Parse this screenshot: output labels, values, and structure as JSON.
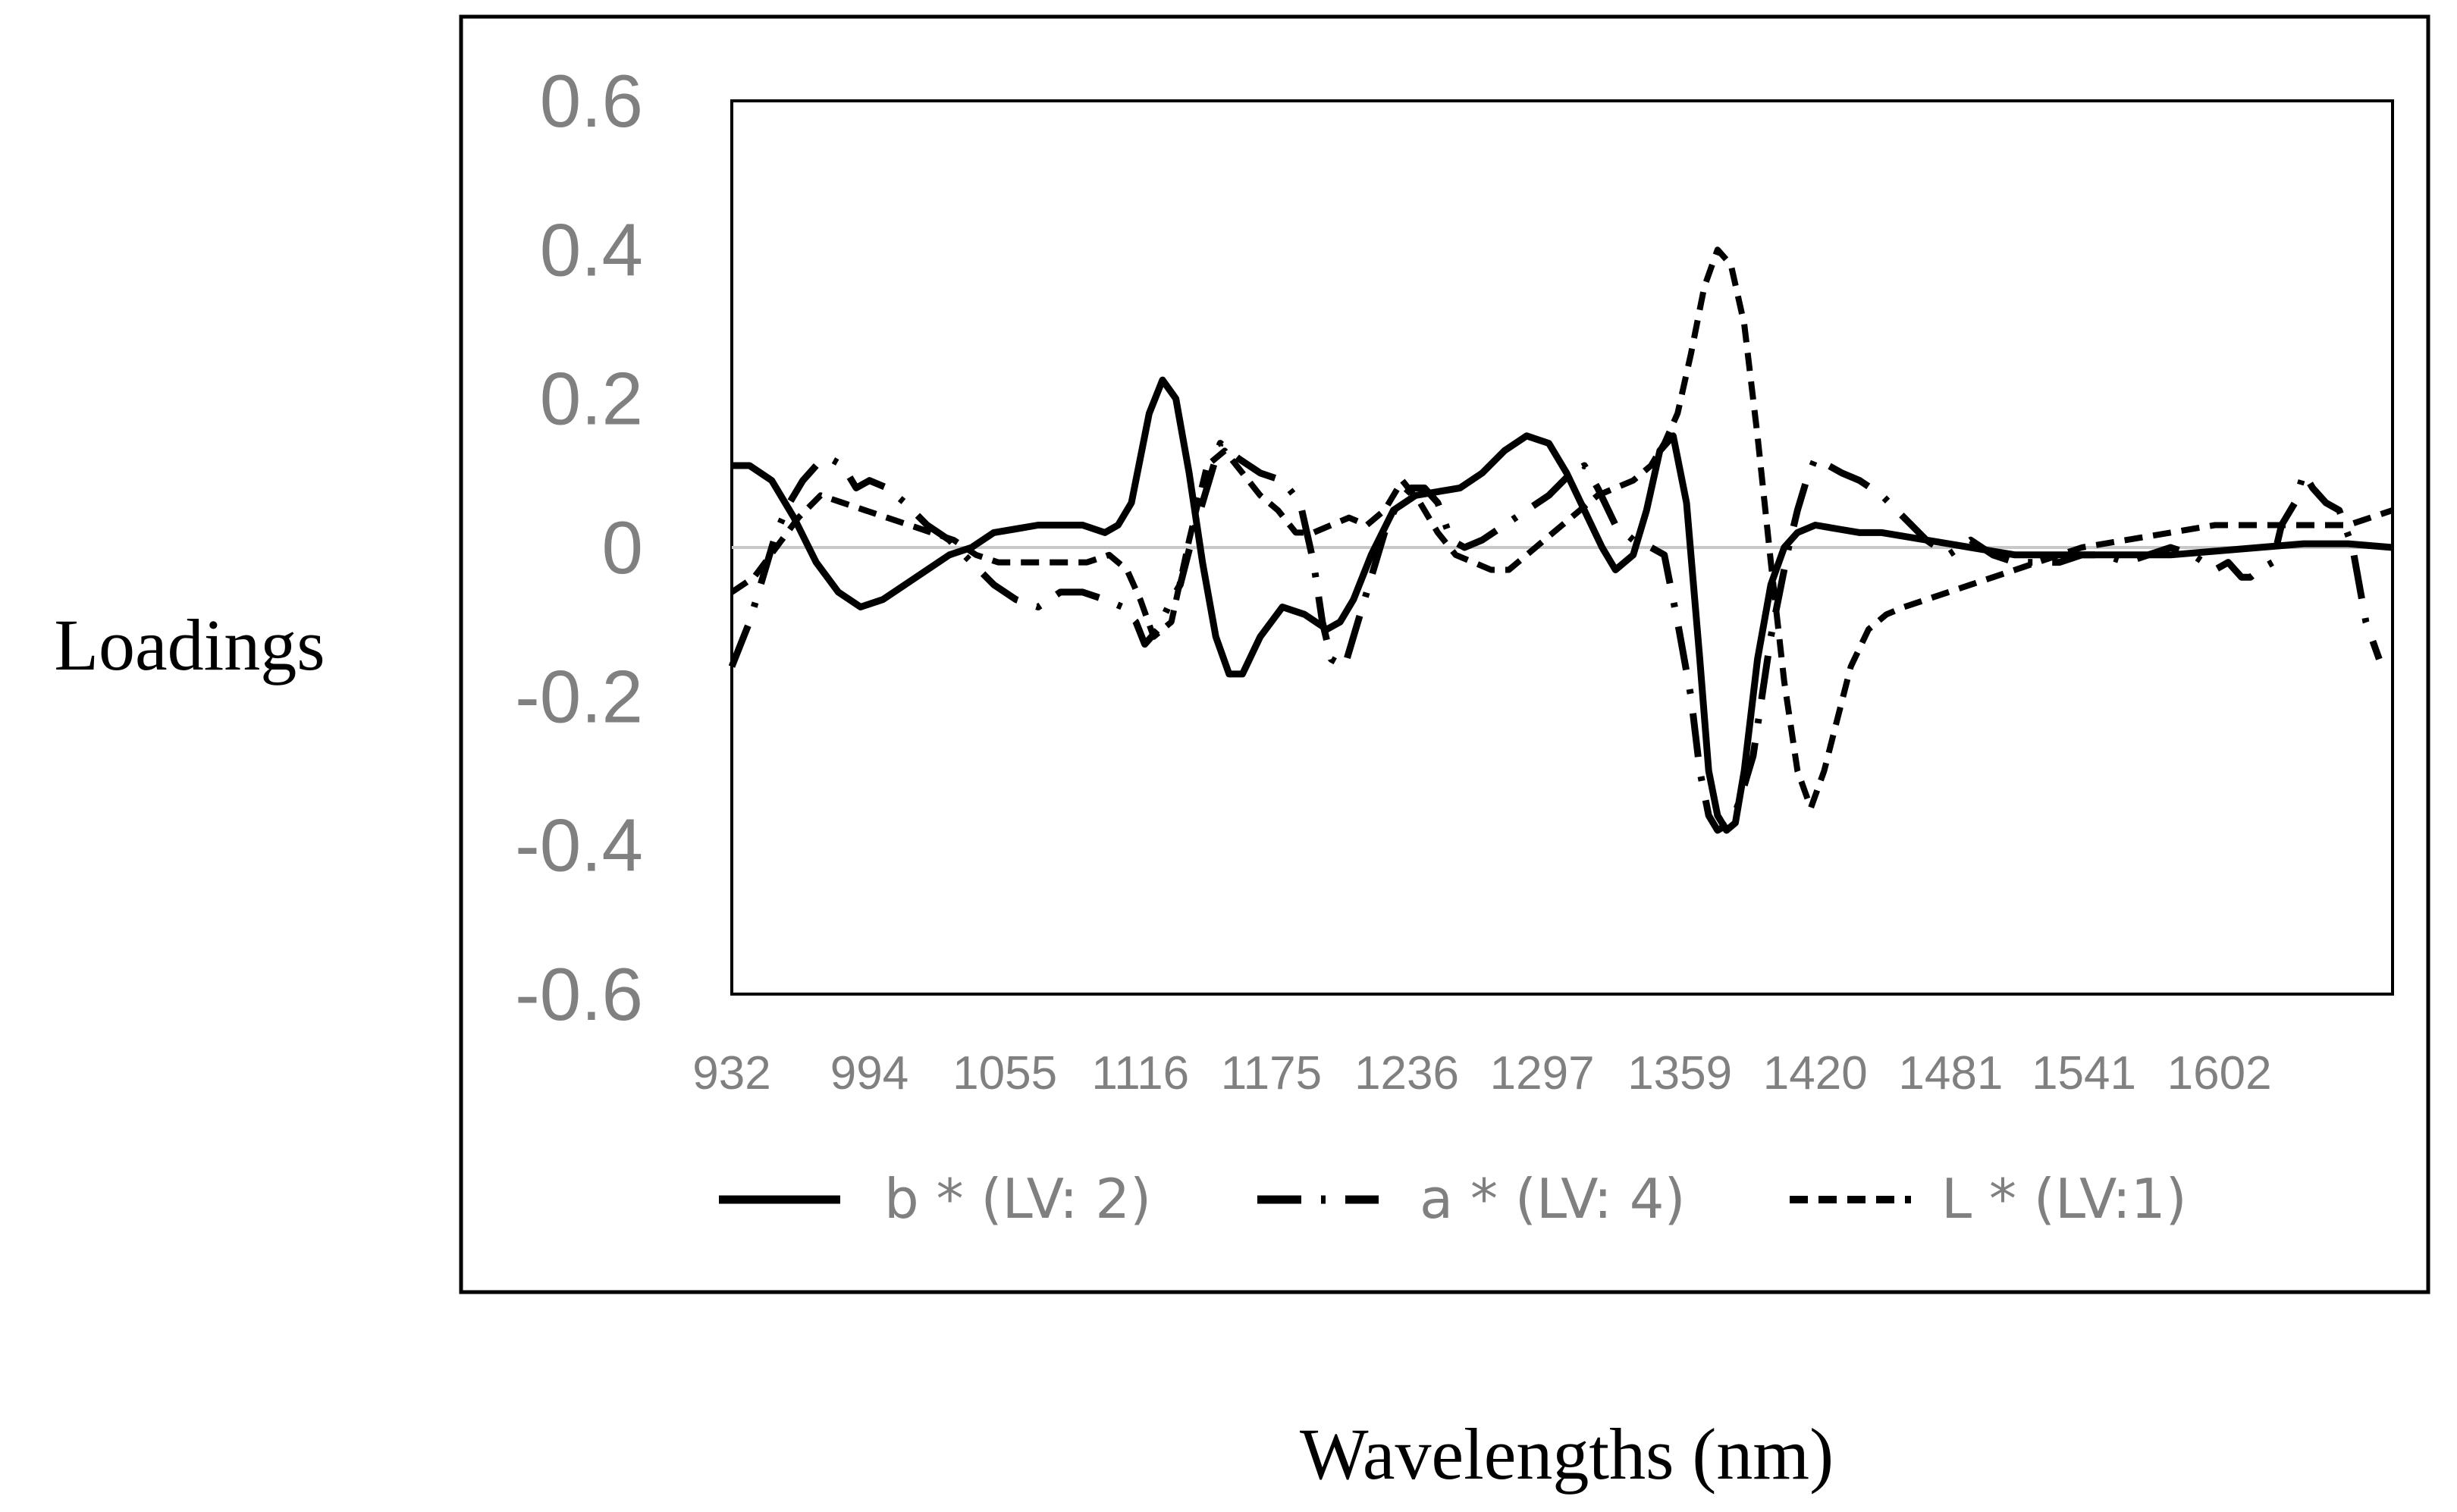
{
  "chart_data": {
    "type": "line",
    "title": "",
    "xlabel": "Wavelengths (nm)",
    "ylabel": "Loadings",
    "ylim": [
      -0.6,
      0.6
    ],
    "xlim": [
      932,
      1680
    ],
    "y_ticks": [
      "0.6",
      "0.4",
      "0.2",
      "0",
      "-0.2",
      "-0.4",
      "-0.6"
    ],
    "x_tick_labels": [
      "932",
      "994",
      "1055",
      "1116",
      "1175",
      "1236",
      "1297",
      "1359",
      "1420",
      "1481",
      "1541",
      "1602"
    ],
    "x_tick_values": [
      932,
      994,
      1055,
      1116,
      1175,
      1236,
      1297,
      1359,
      1420,
      1481,
      1541,
      1602
    ],
    "grid": false,
    "legend_position": "bottom",
    "series": [
      {
        "name": "b * (LV: 2)",
        "style": "solid",
        "x": [
          932,
          940,
          950,
          960,
          970,
          980,
          990,
          1000,
          1010,
          1020,
          1030,
          1040,
          1050,
          1060,
          1070,
          1080,
          1090,
          1100,
          1106,
          1112,
          1120,
          1126,
          1132,
          1138,
          1144,
          1150,
          1156,
          1162,
          1170,
          1180,
          1190,
          1200,
          1206,
          1212,
          1220,
          1230,
          1240,
          1250,
          1260,
          1270,
          1280,
          1290,
          1300,
          1308,
          1316,
          1324,
          1330,
          1338,
          1344,
          1350,
          1356,
          1362,
          1368,
          1372,
          1376,
          1380,
          1384,
          1388,
          1394,
          1400,
          1406,
          1412,
          1420,
          1430,
          1440,
          1450,
          1460,
          1470,
          1480,
          1490,
          1500,
          1510,
          1520,
          1530,
          1540,
          1560,
          1580,
          1600,
          1620,
          1640,
          1660,
          1680
        ],
        "values": [
          0.11,
          0.11,
          0.09,
          0.04,
          -0.02,
          -0.06,
          -0.08,
          -0.07,
          -0.05,
          -0.03,
          -0.01,
          0.0,
          0.02,
          0.025,
          0.03,
          0.03,
          0.03,
          0.02,
          0.03,
          0.06,
          0.18,
          0.225,
          0.2,
          0.1,
          -0.02,
          -0.12,
          -0.17,
          -0.17,
          -0.12,
          -0.08,
          -0.09,
          -0.11,
          -0.1,
          -0.07,
          -0.01,
          0.05,
          0.07,
          0.075,
          0.08,
          0.1,
          0.13,
          0.15,
          0.14,
          0.1,
          0.05,
          0.0,
          -0.03,
          -0.01,
          0.05,
          0.13,
          0.15,
          0.06,
          -0.15,
          -0.3,
          -0.36,
          -0.38,
          -0.37,
          -0.3,
          -0.15,
          -0.05,
          0.0,
          0.02,
          0.03,
          0.025,
          0.02,
          0.02,
          0.015,
          0.01,
          0.005,
          0.0,
          -0.005,
          -0.01,
          -0.01,
          -0.01,
          -0.01,
          -0.01,
          -0.01,
          -0.005,
          0.0,
          0.005,
          0.005,
          0.0
        ]
      },
      {
        "name": "a * (LV: 4)",
        "style": "dashdot",
        "x": [
          932,
          936,
          940,
          946,
          952,
          958,
          964,
          970,
          976,
          982,
          988,
          994,
          1002,
          1010,
          1020,
          1030,
          1040,
          1050,
          1060,
          1070,
          1080,
          1090,
          1100,
          1108,
          1114,
          1118,
          1124,
          1130,
          1134,
          1140,
          1146,
          1152,
          1160,
          1170,
          1180,
          1188,
          1194,
          1198,
          1202,
          1208,
          1214,
          1220,
          1226,
          1232,
          1238,
          1244,
          1250,
          1256,
          1262,
          1270,
          1280,
          1290,
          1300,
          1310,
          1316,
          1322,
          1330,
          1338,
          1346,
          1352,
          1358,
          1364,
          1368,
          1372,
          1376,
          1382,
          1386,
          1392,
          1396,
          1400,
          1404,
          1408,
          1412,
          1416,
          1420,
          1426,
          1432,
          1440,
          1450,
          1460,
          1470,
          1480,
          1490,
          1500,
          1510,
          1520,
          1530,
          1540,
          1550,
          1560,
          1570,
          1580,
          1590,
          1600,
          1606,
          1612,
          1616,
          1620,
          1626,
          1630,
          1636,
          1640,
          1644,
          1650,
          1656,
          1662,
          1668,
          1674
        ],
        "values": [
          -0.16,
          -0.13,
          -0.1,
          -0.04,
          0.02,
          0.06,
          0.09,
          0.11,
          0.12,
          0.11,
          0.08,
          0.09,
          0.08,
          0.06,
          0.03,
          0.01,
          -0.02,
          -0.05,
          -0.07,
          -0.08,
          -0.06,
          -0.06,
          -0.07,
          -0.08,
          -0.1,
          -0.13,
          -0.11,
          -0.07,
          -0.05,
          0.02,
          0.08,
          0.14,
          0.12,
          0.1,
          0.09,
          0.06,
          -0.02,
          -0.1,
          -0.15,
          -0.16,
          -0.1,
          -0.04,
          0.02,
          0.06,
          0.08,
          0.08,
          0.06,
          0.01,
          0.0,
          0.01,
          0.03,
          0.05,
          0.07,
          0.1,
          0.11,
          0.08,
          0.03,
          0.01,
          0.0,
          -0.01,
          -0.1,
          -0.2,
          -0.3,
          -0.36,
          -0.38,
          -0.37,
          -0.34,
          -0.28,
          -0.2,
          -0.12,
          -0.06,
          0.0,
          0.05,
          0.09,
          0.12,
          0.11,
          0.1,
          0.09,
          0.07,
          0.04,
          0.01,
          -0.01,
          0.01,
          -0.01,
          -0.02,
          -0.02,
          -0.02,
          -0.01,
          -0.01,
          -0.02,
          -0.01,
          0.0,
          -0.01,
          -0.03,
          -0.02,
          -0.04,
          -0.04,
          -0.03,
          -0.02,
          0.03,
          0.06,
          0.1,
          0.08,
          0.06,
          0.05,
          0.0,
          -0.1,
          -0.15
        ]
      },
      {
        "name": "L * (LV:1)",
        "style": "dashed",
        "x": [
          932,
          942,
          952,
          962,
          972,
          982,
          992,
          1002,
          1012,
          1022,
          1032,
          1042,
          1052,
          1062,
          1072,
          1082,
          1092,
          1102,
          1110,
          1116,
          1122,
          1130,
          1138,
          1146,
          1154,
          1162,
          1170,
          1178,
          1186,
          1194,
          1202,
          1210,
          1218,
          1226,
          1234,
          1242,
          1250,
          1258,
          1266,
          1274,
          1282,
          1290,
          1298,
          1306,
          1314,
          1322,
          1330,
          1338,
          1346,
          1352,
          1358,
          1364,
          1370,
          1376,
          1382,
          1388,
          1394,
          1400,
          1406,
          1412,
          1418,
          1424,
          1430,
          1436,
          1444,
          1452,
          1460,
          1470,
          1480,
          1490,
          1500,
          1510,
          1520,
          1530,
          1540,
          1560,
          1580,
          1600,
          1620,
          1640,
          1660,
          1680
        ],
        "values": [
          -0.06,
          -0.04,
          0.0,
          0.04,
          0.07,
          0.06,
          0.05,
          0.04,
          0.03,
          0.02,
          0.01,
          -0.01,
          -0.02,
          -0.02,
          -0.02,
          -0.02,
          -0.02,
          -0.01,
          -0.03,
          -0.07,
          -0.12,
          -0.1,
          0.01,
          0.11,
          0.13,
          0.1,
          0.07,
          0.05,
          0.02,
          0.02,
          0.03,
          0.04,
          0.03,
          0.05,
          0.09,
          0.06,
          0.02,
          -0.01,
          -0.02,
          -0.03,
          -0.03,
          -0.01,
          0.01,
          0.03,
          0.05,
          0.07,
          0.08,
          0.09,
          0.11,
          0.14,
          0.18,
          0.26,
          0.35,
          0.4,
          0.38,
          0.3,
          0.15,
          -0.02,
          -0.18,
          -0.3,
          -0.35,
          -0.3,
          -0.23,
          -0.16,
          -0.11,
          -0.09,
          -0.08,
          -0.07,
          -0.06,
          -0.05,
          -0.04,
          -0.03,
          -0.02,
          -0.01,
          0.0,
          0.01,
          0.02,
          0.03,
          0.03,
          0.03,
          0.03,
          0.05
        ]
      }
    ]
  }
}
